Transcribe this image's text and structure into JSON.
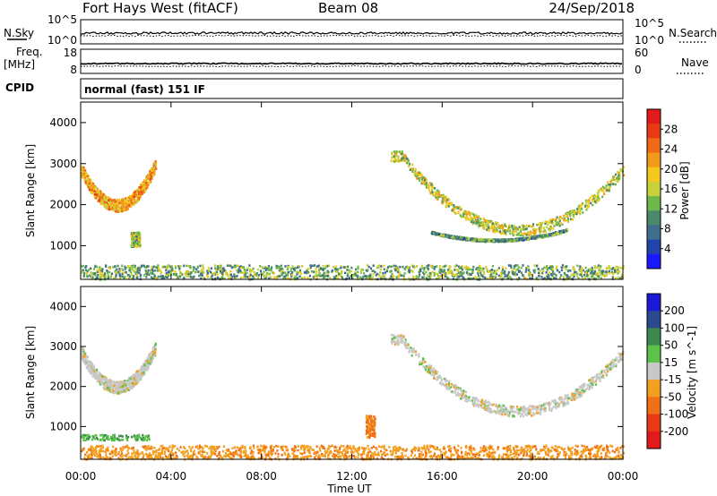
{
  "header": {
    "station": "Fort Hays West (fitACF)",
    "beam": "Beam 08",
    "date": "24/Sep/2018"
  },
  "top_panel": {
    "left_label": "N.Sky",
    "right_label": "N.Search",
    "left_ticks": [
      "10^5",
      "10^0"
    ],
    "right_ticks": [
      "10^5",
      "10^0"
    ]
  },
  "freq_panel": {
    "left_label_line1": "Freq.",
    "left_label_line2": "[MHz]",
    "right_label": "Nave",
    "left_ticks": [
      "18",
      "8"
    ],
    "right_ticks": [
      "60",
      "0"
    ]
  },
  "cpid": {
    "label": "CPID",
    "text": "normal (fast) 151 IF"
  },
  "chart_data": [
    {
      "type": "heatmap",
      "title": "",
      "xlabel": "Time UT",
      "ylabel": "Slant Range [km]",
      "xlim": [
        0,
        24
      ],
      "ylim": [
        180,
        4500
      ],
      "x_ticks": [
        "00:00",
        "04:00",
        "08:00",
        "12:00",
        "16:00",
        "20:00",
        "00:00"
      ],
      "y_ticks": [
        "1000",
        "2000",
        "3000",
        "4000"
      ],
      "colorbar": {
        "label": "Power [dB]",
        "range": [
          0,
          32
        ],
        "ticks": [
          "4",
          "8",
          "12",
          "16",
          "20",
          "24",
          "28"
        ],
        "colors": [
          "#1a1aff",
          "#2244aa",
          "#3f6e8c",
          "#4a8a6a",
          "#6cb84a",
          "#c8d13a",
          "#f5c81e",
          "#f39a1a",
          "#ef6a18",
          "#e83a14",
          "#e31a1c"
        ]
      },
      "features": [
        {
          "name": "early-arc",
          "t_start": 0.0,
          "t_end": 3.3,
          "range_km": [
            2000,
            3050
          ],
          "power_db": 22
        },
        {
          "name": "early-patch",
          "t_start": 2.2,
          "t_end": 2.6,
          "range_km": [
            1000,
            1350
          ],
          "power_db": 14
        },
        {
          "name": "near-range-band",
          "t_start": 0.0,
          "t_end": 24.0,
          "range_km": [
            200,
            550
          ],
          "power_db": 12
        },
        {
          "name": "main-arc",
          "t_start": 13.7,
          "t_end": 24.0,
          "range_km": [
            1400,
            3200
          ],
          "power_db": 16
        },
        {
          "name": "inner-arc",
          "t_start": 15.5,
          "t_end": 21.5,
          "range_km": [
            1150,
            1350
          ],
          "power_db": 10
        }
      ]
    },
    {
      "type": "heatmap",
      "title": "",
      "xlabel": "Time UT",
      "ylabel": "Slant Range [km]",
      "xlim": [
        0,
        24
      ],
      "ylim": [
        180,
        4500
      ],
      "x_ticks": [
        "00:00",
        "04:00",
        "08:00",
        "12:00",
        "16:00",
        "20:00",
        "00:00"
      ],
      "y_ticks": [
        "1000",
        "2000",
        "3000",
        "4000"
      ],
      "colorbar": {
        "label": "Velocity [m s^-1]",
        "ticks": [
          "200",
          "100",
          "50",
          "15",
          "-15",
          "-50",
          "-100",
          "-200"
        ],
        "colors": [
          "#1a1ad6",
          "#2b4a8e",
          "#3c8a4e",
          "#5cc24a",
          "#c8c8c8",
          "#f3a020",
          "#f07018",
          "#e83a14",
          "#e31a1c"
        ]
      },
      "features": [
        {
          "name": "early-arc",
          "t_start": 0.0,
          "t_end": 3.3,
          "range_km": [
            2000,
            3050
          ],
          "velocity": 0
        },
        {
          "name": "early-band",
          "t_start": 0.0,
          "t_end": 3.0,
          "range_km": [
            680,
            820
          ],
          "velocity": 40
        },
        {
          "name": "near-range-band",
          "t_start": 0.0,
          "t_end": 24.0,
          "range_km": [
            200,
            550
          ],
          "velocity": -40
        },
        {
          "name": "main-arc",
          "t_start": 13.7,
          "t_end": 24.0,
          "range_km": [
            1400,
            3200
          ],
          "velocity": 0
        },
        {
          "name": "mid-patch",
          "t_start": 12.6,
          "t_end": 13.0,
          "range_km": [
            750,
            1300
          ],
          "velocity": -60
        }
      ]
    }
  ]
}
